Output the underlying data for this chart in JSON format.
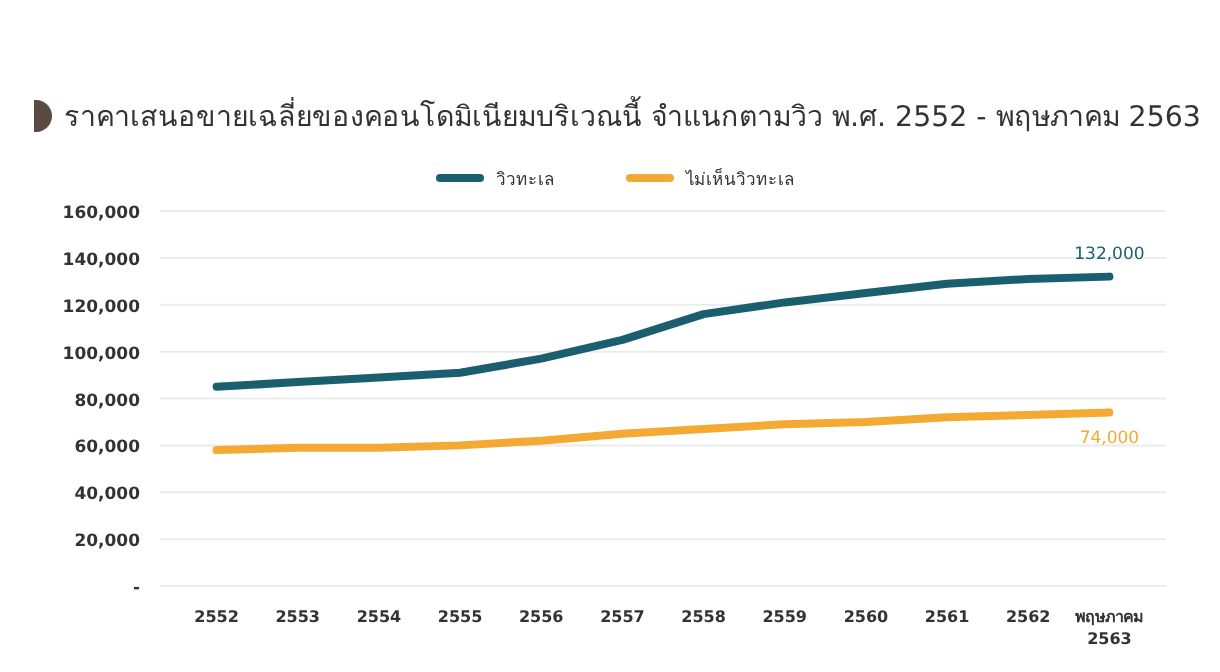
{
  "chart_data": {
    "type": "line",
    "title": "ราคาเสนอขายเฉลี่ยของคอนโดมิเนียมบริเวณนี้ จำแนกตามวิว พ.ศ. 2552 - พฤษภาคม 2563",
    "categories": [
      "2552",
      "2553",
      "2554",
      "2555",
      "2556",
      "2557",
      "2558",
      "2559",
      "2560",
      "2561",
      "2562",
      "พฤษภาคม 2563"
    ],
    "series": [
      {
        "name": "วิวทะเล",
        "color": "#1b5e6e",
        "values": [
          85000,
          87000,
          89000,
          91000,
          97000,
          105000,
          116000,
          121000,
          125000,
          129000,
          131000,
          132000
        ],
        "value_labels": [
          null,
          null,
          null,
          null,
          null,
          null,
          null,
          null,
          null,
          null,
          null,
          "132,000"
        ]
      },
      {
        "name": "ไม่เห็นวิวทะเล",
        "color": "#f4a933",
        "values": [
          58000,
          59000,
          59000,
          60000,
          62000,
          65000,
          67000,
          69000,
          70000,
          72000,
          73000,
          74000
        ],
        "value_labels": [
          null,
          null,
          null,
          null,
          null,
          null,
          null,
          null,
          null,
          null,
          null,
          "74,000"
        ]
      }
    ],
    "ylim": [
      0,
      160000
    ],
    "yticks": [
      {
        "value": 0,
        "label": "-"
      },
      {
        "value": 20000,
        "label": "20,000"
      },
      {
        "value": 40000,
        "label": "40,000"
      },
      {
        "value": 60000,
        "label": "60,000"
      },
      {
        "value": 80000,
        "label": "80,000"
      },
      {
        "value": 100000,
        "label": "100,000"
      },
      {
        "value": 120000,
        "label": "120,000"
      },
      {
        "value": 140000,
        "label": "140,000"
      },
      {
        "value": 160000,
        "label": "160,000"
      }
    ],
    "grid": "y",
    "legend": "top",
    "marker": "none",
    "line_style": "solid"
  }
}
